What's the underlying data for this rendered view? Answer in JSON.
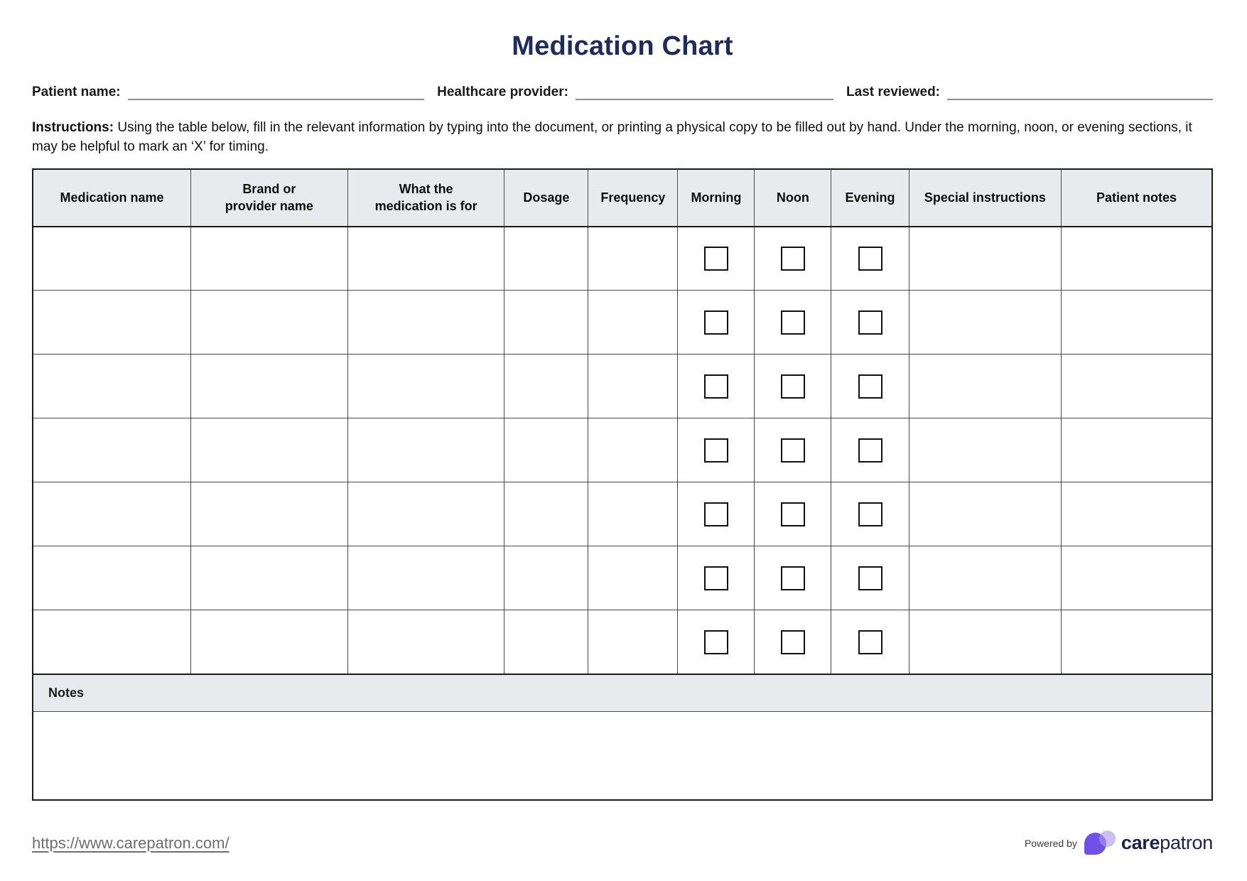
{
  "title": "Medication Chart",
  "fields": {
    "patient_name": {
      "label": "Patient name:",
      "value": ""
    },
    "healthcare_provider": {
      "label": "Healthcare provider:",
      "value": ""
    },
    "last_reviewed": {
      "label": "Last reviewed:",
      "value": ""
    }
  },
  "instructions": {
    "label": "Instructions:",
    "text": " Using the table below, fill in the relevant information by typing into the document, or printing a physical copy to be filled out by hand. Under the morning, noon, or evening sections, it may be helpful to mark an ‘X’ for timing."
  },
  "table": {
    "columns": [
      "Medication name",
      "Brand or\nprovider name",
      "What the\nmedication is for",
      "Dosage",
      "Frequency",
      "Morning",
      "Noon",
      "Evening",
      "Special instructions",
      "Patient notes"
    ],
    "column_widths_percent": [
      13.4,
      13.3,
      13.3,
      7.1,
      7.6,
      6.5,
      6.5,
      6.6,
      12.9,
      12.8
    ],
    "checkbox_column_indices": [
      5,
      6,
      7
    ],
    "row_count": 7,
    "cell_values": [],
    "checkbox_states": "all-unchecked",
    "notes_label": "Notes",
    "notes_value": ""
  },
  "footer": {
    "url": "https://www.carepatron.com/",
    "powered_by": "Powered by",
    "brand_bold": "care",
    "brand_rest": "patron"
  },
  "colors": {
    "title_navy": "#1d2b5e",
    "header_bg": "#e8eaee",
    "outer_border": "#1a1a1a",
    "cell_border": "#4a4a4a",
    "checkbox_border": "#111111",
    "logo_purple": "#6e52e8",
    "logo_lavender": "#ad98f3",
    "url_gray": "#6e6e6e",
    "wordmark_navy": "#1d2150"
  }
}
